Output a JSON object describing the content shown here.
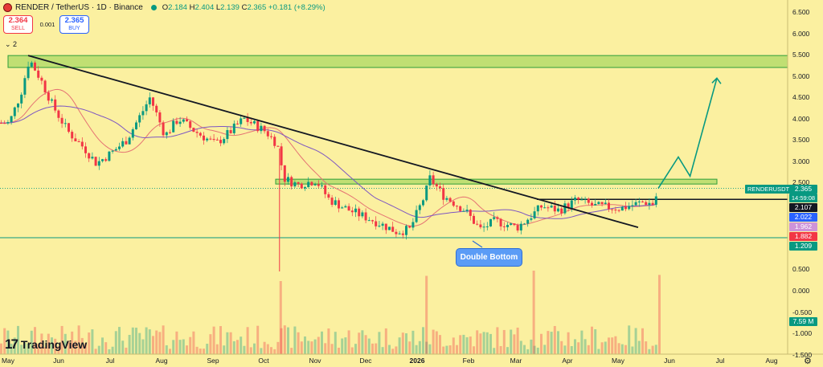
{
  "header": {
    "symbol": "RENDER",
    "pair_line": "RENDER / TetherUS · 1D · Binance",
    "open_label": "O",
    "open": "2.184",
    "high_label": "H",
    "high": "2.404",
    "low_label": "L",
    "low": "2.139",
    "close_label": "C",
    "close": "2.365",
    "change": "+0.181 (+8.29%)"
  },
  "trade": {
    "sell_price": "2.364",
    "sell_label": "SELL",
    "spread": "0.001",
    "buy_price": "2.365",
    "buy_label": "BUY"
  },
  "indicators_toggle": "2",
  "brand": {
    "mark": "17",
    "name": "TradingView"
  },
  "annotation": {
    "double_bottom": "Double Bottom"
  },
  "price_axis_ticks": [
    {
      "value": 6.5,
      "label": "6.500"
    },
    {
      "value": 6.0,
      "label": "6.000"
    },
    {
      "value": 5.5,
      "label": "5.500"
    },
    {
      "value": 5.0,
      "label": "5.000"
    },
    {
      "value": 4.5,
      "label": "4.500"
    },
    {
      "value": 4.0,
      "label": "4.000"
    },
    {
      "value": 3.5,
      "label": "3.500"
    },
    {
      "value": 3.0,
      "label": "3.000"
    },
    {
      "value": 2.5,
      "label": "2.500"
    },
    {
      "value": 0.5,
      "label": "0.500"
    },
    {
      "value": 0.0,
      "label": "0.000"
    },
    {
      "value": -0.5,
      "label": "-0.500"
    },
    {
      "value": -1.0,
      "label": "-1.000"
    },
    {
      "value": -1.5,
      "label": "-1.500"
    }
  ],
  "price_tags": [
    {
      "symbol": "RENDERUSDT",
      "value": "2.365",
      "sub": "14:59:08",
      "color": "#089981"
    },
    {
      "value": "2.107",
      "color": "#131722"
    },
    {
      "value": "2.022",
      "color": "#2962ff"
    },
    {
      "value": "1.962",
      "color": "#ce93d8"
    },
    {
      "value": "1.882",
      "color": "#f23645"
    },
    {
      "value": "1.209",
      "color": "#089981"
    },
    {
      "value": "7.59 M",
      "color": "#089981"
    }
  ],
  "time_axis": [
    {
      "label": "May",
      "bold": false
    },
    {
      "label": "Jun",
      "bold": false
    },
    {
      "label": "Jul",
      "bold": false
    },
    {
      "label": "Aug",
      "bold": false
    },
    {
      "label": "Sep",
      "bold": false
    },
    {
      "label": "Oct",
      "bold": false
    },
    {
      "label": "Nov",
      "bold": false
    },
    {
      "label": "Dec",
      "bold": false
    },
    {
      "label": "2026",
      "bold": true
    },
    {
      "label": "Feb",
      "bold": false
    },
    {
      "label": "Mar",
      "bold": false
    },
    {
      "label": "Apr",
      "bold": false
    },
    {
      "label": "May",
      "bold": false
    },
    {
      "label": "Jun",
      "bold": false
    },
    {
      "label": "Jul",
      "bold": false
    },
    {
      "label": "Aug",
      "bold": false
    }
  ],
  "colors": {
    "up": "#089981",
    "down": "#f23645",
    "zone": "#8fd14f",
    "background": "#fbf0a0"
  },
  "chart_data": {
    "type": "candlestick",
    "title": "",
    "price_range": [
      -1.5,
      6.5
    ],
    "series": [
      {
        "name": "price",
        "points": [
          [
            "2025-05-01",
            3.9
          ],
          [
            "2025-05-08",
            4.6
          ],
          [
            "2025-05-13",
            5.4
          ],
          [
            "2025-05-20",
            4.9
          ],
          [
            "2025-05-27",
            4.3
          ],
          [
            "2025-06-05",
            3.7
          ],
          [
            "2025-06-15",
            3.3
          ],
          [
            "2025-06-22",
            2.95
          ],
          [
            "2025-07-01",
            3.2
          ],
          [
            "2025-07-10",
            3.5
          ],
          [
            "2025-07-20",
            4.2
          ],
          [
            "2025-07-24",
            4.5
          ],
          [
            "2025-08-02",
            3.6
          ],
          [
            "2025-08-10",
            4.0
          ],
          [
            "2025-08-20",
            3.7
          ],
          [
            "2025-09-01",
            3.4
          ],
          [
            "2025-09-10",
            3.7
          ],
          [
            "2025-09-18",
            4.0
          ],
          [
            "2025-10-01",
            3.7
          ],
          [
            "2025-10-08",
            3.4
          ],
          [
            "2025-10-12",
            2.6
          ],
          [
            "2025-10-20",
            2.45
          ],
          [
            "2025-10-31",
            2.55
          ],
          [
            "2025-11-08",
            2.1
          ],
          [
            "2025-11-20",
            1.85
          ],
          [
            "2025-12-05",
            1.6
          ],
          [
            "2025-12-18",
            1.35
          ],
          [
            "2025-12-26",
            1.4
          ],
          [
            "2026-01-04",
            2.2
          ],
          [
            "2026-01-07",
            2.6
          ],
          [
            "2026-01-15",
            2.2
          ],
          [
            "2026-01-28",
            1.85
          ],
          [
            "2026-02-06",
            1.4
          ],
          [
            "2026-02-15",
            1.6
          ],
          [
            "2026-02-28",
            1.45
          ],
          [
            "2026-03-05",
            1.6
          ],
          [
            "2026-03-15",
            1.95
          ],
          [
            "2026-03-25",
            1.85
          ],
          [
            "2026-04-05",
            2.1
          ],
          [
            "2026-04-15",
            1.95
          ],
          [
            "2026-05-01",
            1.9
          ],
          [
            "2026-05-15",
            2.05
          ],
          [
            "2026-05-20",
            2.0
          ],
          [
            "2026-05-24",
            2.365
          ]
        ]
      },
      {
        "name": "projection",
        "points": [
          [
            "2026-05-24",
            2.365
          ],
          [
            "2026-06-05",
            3.1
          ],
          [
            "2026-06-12",
            2.65
          ],
          [
            "2026-06-28",
            4.95
          ]
        ]
      }
    ],
    "levels": [
      {
        "name": "resistance_zone",
        "from": 5.2,
        "to": 5.48
      },
      {
        "name": "breakout_zone",
        "from": 2.5,
        "to": 2.58
      },
      {
        "name": "neckline",
        "value": 2.107
      },
      {
        "name": "support",
        "value": 1.209
      }
    ],
    "trendline": [
      [
        "2025-05-13",
        5.48
      ],
      [
        "2026-05-12",
        1.45
      ]
    ],
    "volume_peaks": [
      [
        "2025-10-10",
        7.0
      ],
      [
        "2026-01-05",
        7.5
      ],
      [
        "2026-03-10",
        8.0
      ],
      [
        "2026-05-24",
        7.59
      ]
    ]
  }
}
